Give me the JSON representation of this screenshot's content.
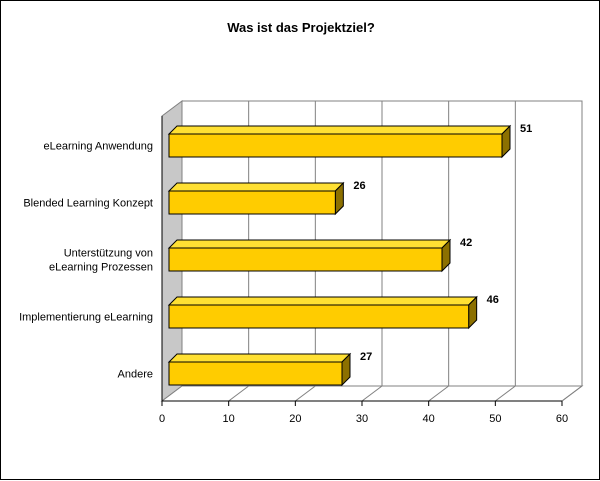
{
  "chart_data": {
    "type": "bar",
    "orientation": "horizontal",
    "style": "3d",
    "title": "Was ist das Projektziel?",
    "categories": [
      [
        "eLearning Anwendung"
      ],
      [
        "Blended Learning Konzept"
      ],
      [
        "Unterstützung von",
        "eLearning Prozessen"
      ],
      [
        "Implementierung eLearning"
      ],
      [
        "Andere"
      ]
    ],
    "values": [
      51,
      26,
      42,
      46,
      27
    ],
    "x_ticks": [
      "0",
      "10",
      "20",
      "30",
      "40",
      "50",
      "60"
    ],
    "xlim": [
      0,
      60
    ],
    "grid": true,
    "legend": "none",
    "colors": {
      "bar_front": "#FFCC00",
      "bar_top": "#FFE033",
      "bar_side": "#8C7000",
      "wall": "#C8C8C8",
      "grid": "#808080"
    }
  }
}
